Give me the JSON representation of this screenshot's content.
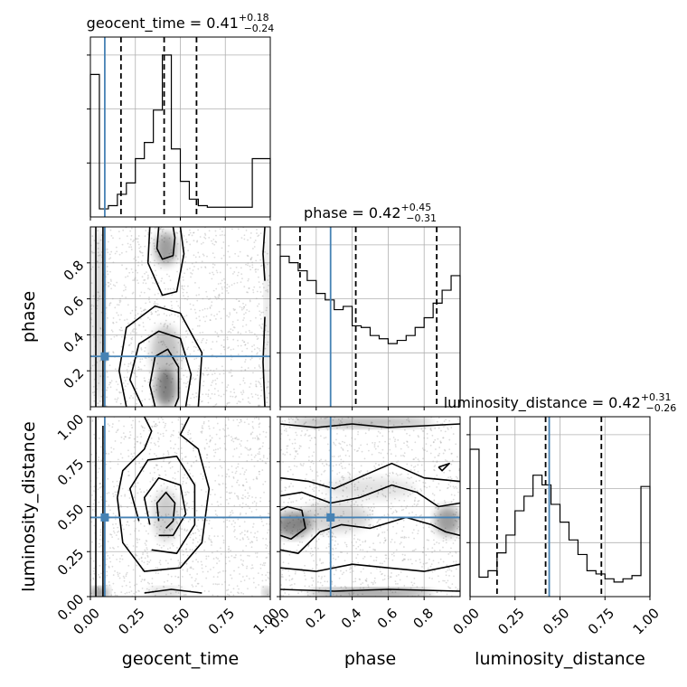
{
  "chart_data": {
    "type": "corner",
    "parameters": [
      "geocent_time",
      "phase",
      "luminosity_distance"
    ],
    "truths": {
      "geocent_time": 0.08,
      "phase": 0.28,
      "luminosity_distance": 0.44
    },
    "marginals": [
      {
        "parameter": "geocent_time",
        "title": "geocent_time = 0.41",
        "title_sup": "+0.18",
        "title_sub": "−0.24",
        "quantiles": [
          0.17,
          0.41,
          0.59
        ],
        "xlim": [
          0,
          1
        ],
        "bins": 20,
        "heights": [
          0.88,
          0.05,
          0.07,
          0.14,
          0.21,
          0.36,
          0.46,
          0.66,
          1.0,
          0.42,
          0.22,
          0.11,
          0.07,
          0.06,
          0.06,
          0.06,
          0.06,
          0.06,
          0.36,
          0.36
        ]
      },
      {
        "parameter": "phase",
        "title": "phase = 0.42",
        "title_sup": "+0.45",
        "title_sub": "−0.31",
        "quantiles": [
          0.11,
          0.42,
          0.87
        ],
        "xlim": [
          0,
          1
        ],
        "bins": 20,
        "heights": [
          0.93,
          0.89,
          0.84,
          0.78,
          0.7,
          0.66,
          0.6,
          0.62,
          0.5,
          0.49,
          0.44,
          0.42,
          0.39,
          0.41,
          0.44,
          0.49,
          0.55,
          0.64,
          0.72,
          0.81
        ]
      },
      {
        "parameter": "luminosity_distance",
        "title": "luminosity_distance = 0.42",
        "title_sup": "+0.31",
        "title_sub": "−0.26",
        "quantiles": [
          0.15,
          0.42,
          0.73
        ],
        "xlim": [
          0,
          1
        ],
        "bins": 20,
        "heights": [
          0.91,
          0.12,
          0.16,
          0.27,
          0.38,
          0.53,
          0.62,
          0.75,
          0.69,
          0.57,
          0.46,
          0.35,
          0.26,
          0.16,
          0.14,
          0.11,
          0.09,
          0.11,
          0.13,
          0.68
        ]
      }
    ],
    "joint_panels": [
      {
        "x": "geocent_time",
        "y": "phase",
        "xlim": [
          0,
          1
        ],
        "ylim": [
          0,
          1
        ]
      },
      {
        "x": "geocent_time",
        "y": "luminosity_distance",
        "xlim": [
          0,
          1
        ],
        "ylim": [
          0,
          1
        ]
      },
      {
        "x": "phase",
        "y": "luminosity_distance",
        "xlim": [
          0,
          1
        ],
        "ylim": [
          0,
          1
        ]
      }
    ],
    "x_ticks": {
      "geocent_time": [
        "0.00",
        "0.25",
        "0.50",
        "0.75",
        "1.00"
      ],
      "phase": [
        "0.0",
        "0.2",
        "0.4",
        "0.6",
        "0.8"
      ],
      "luminosity_distance": [
        "0.00",
        "0.25",
        "0.50",
        "0.75",
        "1.00"
      ]
    },
    "y_ticks": {
      "phase": [
        "0.2",
        "0.4",
        "0.6",
        "0.8"
      ],
      "luminosity_distance": [
        "0.00",
        "0.25",
        "0.50",
        "0.75",
        "1.00"
      ]
    },
    "xlabels": [
      "geocent_time",
      "phase",
      "luminosity_distance"
    ],
    "ylabels": [
      "phase",
      "luminosity_distance"
    ],
    "grid": true,
    "colors": {
      "truth": "#4682b4",
      "line": "#000000",
      "grid": "#b0b0b0"
    }
  }
}
